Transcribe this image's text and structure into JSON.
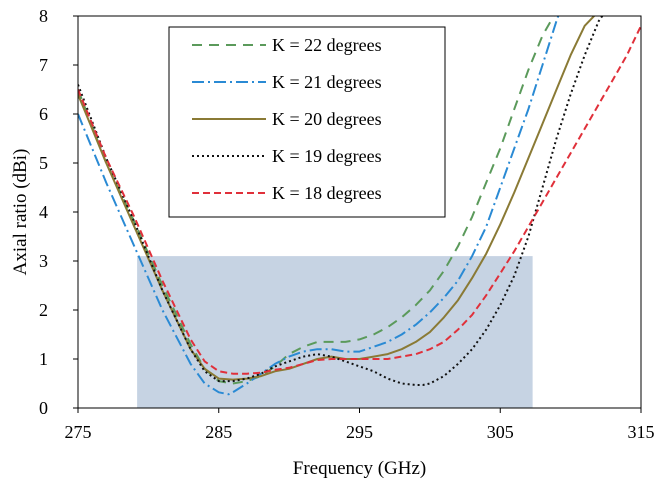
{
  "chart_data": {
    "type": "line",
    "title": "",
    "xlabel": "Frequency (GHz)",
    "ylabel": "Axial ratio (dBi)",
    "xlim": [
      275,
      315
    ],
    "ylim": [
      0,
      8
    ],
    "xticks": [
      "275",
      "285",
      "295",
      "305",
      "315"
    ],
    "yticks": [
      "0",
      "1",
      "2",
      "3",
      "4",
      "5",
      "6",
      "7",
      "8"
    ],
    "grid": false,
    "legend_position": "top-center",
    "shaded_region": {
      "x": [
        279.2,
        307.3
      ],
      "y": [
        0,
        3.1
      ],
      "color": "#c6d3e3"
    },
    "series": [
      {
        "name": "K = 22 degrees",
        "color": "#5b9a5b",
        "dash": "10,7",
        "x": [
          275,
          277,
          279,
          281,
          283,
          284,
          285,
          286,
          287,
          288,
          289,
          290,
          291,
          292,
          293,
          294,
          295,
          296,
          297,
          298,
          299,
          300,
          301,
          302,
          303,
          304,
          305,
          306,
          307,
          308,
          309,
          309.5
        ],
        "y": [
          6.5,
          5.0,
          3.8,
          2.5,
          1.3,
          0.8,
          0.55,
          0.5,
          0.55,
          0.65,
          0.85,
          1.1,
          1.25,
          1.35,
          1.35,
          1.35,
          1.4,
          1.5,
          1.65,
          1.85,
          2.1,
          2.4,
          2.8,
          3.3,
          3.9,
          4.6,
          5.3,
          6.1,
          6.9,
          7.6,
          8.1,
          8.3
        ]
      },
      {
        "name": "K = 21 degrees",
        "color": "#2a8ad4",
        "dash": "12,4,2,4",
        "x": [
          275,
          277,
          279,
          281,
          283,
          284,
          285,
          285.7,
          286,
          287,
          288,
          289,
          290,
          291,
          292,
          293,
          294,
          295,
          296,
          297,
          298,
          299,
          300,
          301,
          302,
          303,
          304,
          305,
          306,
          307,
          308,
          309,
          309.5
        ],
        "y": [
          6.0,
          4.6,
          3.3,
          2.0,
          0.9,
          0.5,
          0.32,
          0.28,
          0.32,
          0.5,
          0.7,
          0.9,
          1.05,
          1.15,
          1.2,
          1.2,
          1.15,
          1.15,
          1.25,
          1.35,
          1.5,
          1.7,
          1.95,
          2.25,
          2.6,
          3.1,
          3.7,
          4.5,
          5.3,
          6.1,
          7.0,
          7.9,
          8.3
        ]
      },
      {
        "name": "K = 20 degrees",
        "color": "#8a7a35",
        "dash": "",
        "x": [
          275,
          277,
          279,
          281,
          283,
          284,
          285,
          286,
          287,
          288,
          289,
          290,
          291,
          292,
          293,
          294,
          295,
          296,
          297,
          298,
          299,
          300,
          301,
          302,
          303,
          304,
          305,
          306,
          307,
          308,
          309,
          310,
          311,
          312
        ],
        "y": [
          6.4,
          5.0,
          3.7,
          2.4,
          1.2,
          0.8,
          0.6,
          0.58,
          0.6,
          0.65,
          0.75,
          0.8,
          0.9,
          1.0,
          1.05,
          1.0,
          1.0,
          1.05,
          1.1,
          1.2,
          1.35,
          1.55,
          1.85,
          2.2,
          2.65,
          3.15,
          3.75,
          4.4,
          5.1,
          5.8,
          6.5,
          7.2,
          7.8,
          8.1
        ]
      },
      {
        "name": "K = 19 degrees",
        "color": "#111111",
        "dash": "2,3",
        "x": [
          275,
          277,
          279,
          281,
          283,
          284,
          285,
          286,
          287,
          288,
          289,
          290,
          291,
          292,
          293,
          294,
          295,
          296,
          297,
          298,
          299,
          299.5,
          300,
          301,
          302,
          303,
          304,
          305,
          306,
          307,
          308,
          309,
          310,
          311,
          312,
          313
        ],
        "y": [
          6.6,
          5.1,
          3.8,
          2.4,
          1.2,
          0.75,
          0.55,
          0.55,
          0.6,
          0.7,
          0.85,
          0.95,
          1.05,
          1.1,
          1.05,
          0.95,
          0.85,
          0.75,
          0.6,
          0.5,
          0.47,
          0.47,
          0.5,
          0.65,
          0.9,
          1.2,
          1.6,
          2.1,
          2.7,
          3.5,
          4.5,
          5.5,
          6.4,
          7.2,
          7.9,
          8.3
        ]
      },
      {
        "name": "K = 18 degrees",
        "color": "#e0303a",
        "dash": "7,4",
        "x": [
          275,
          277,
          279,
          281,
          283,
          284,
          285,
          286,
          287,
          288,
          289,
          290,
          291,
          292,
          293,
          294,
          295,
          296,
          297,
          298,
          299,
          300,
          301,
          302,
          303,
          304,
          305,
          306,
          307,
          308,
          309,
          310,
          311,
          312,
          313,
          314,
          315
        ],
        "y": [
          6.5,
          5.1,
          3.9,
          2.6,
          1.4,
          0.95,
          0.75,
          0.7,
          0.7,
          0.72,
          0.78,
          0.82,
          0.9,
          0.98,
          1.0,
          1.0,
          1.0,
          1.0,
          1.0,
          1.05,
          1.1,
          1.2,
          1.35,
          1.6,
          1.9,
          2.3,
          2.75,
          3.2,
          3.7,
          4.2,
          4.7,
          5.2,
          5.7,
          6.2,
          6.7,
          7.2,
          7.8
        ]
      }
    ]
  }
}
